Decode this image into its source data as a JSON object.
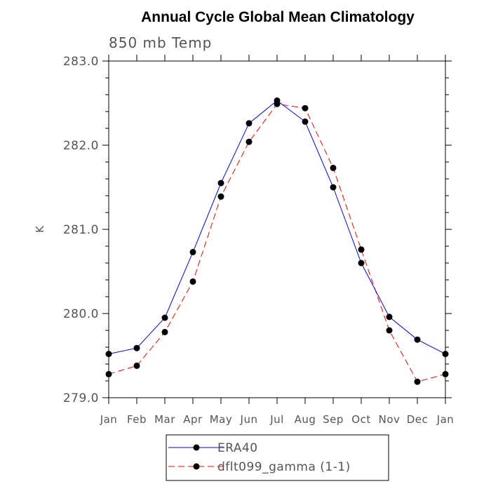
{
  "chart_data": {
    "type": "line",
    "title": "Annual Cycle Global Mean Climatology",
    "subtitle": "850 mb Temp",
    "ylabel": "K",
    "xlabel": "",
    "ylim": [
      279.0,
      283.0
    ],
    "yticks": [
      279.0,
      280.0,
      281.0,
      282.0,
      283.0
    ],
    "ytick_labels": [
      "279.0",
      "280.0",
      "281.0",
      "282.0",
      "283.0"
    ],
    "categories": [
      "Jan",
      "Feb",
      "Mar",
      "Apr",
      "May",
      "Jun",
      "Jul",
      "Aug",
      "Sep",
      "Oct",
      "Nov",
      "Dec",
      "Jan"
    ],
    "series": [
      {
        "name": "ERA40",
        "color": "#0000ff",
        "dash": "solid",
        "values": [
          279.52,
          279.59,
          279.95,
          280.73,
          281.55,
          282.26,
          282.53,
          282.28,
          281.5,
          280.6,
          279.96,
          279.69,
          279.52
        ]
      },
      {
        "name": "dflt099_gamma (1-1)",
        "color": "#ff0000",
        "dash": "dashed",
        "values": [
          279.28,
          279.38,
          279.78,
          280.38,
          281.39,
          282.04,
          282.49,
          282.44,
          281.73,
          280.76,
          279.8,
          279.19,
          279.28
        ]
      }
    ],
    "grid": false,
    "legend_position": "bottom"
  }
}
